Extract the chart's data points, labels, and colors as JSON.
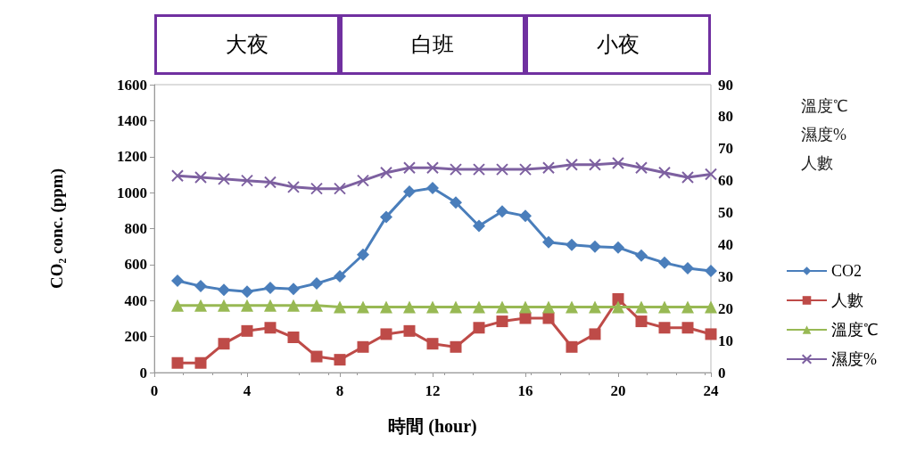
{
  "chart_data": {
    "type": "line",
    "xlabel": "時間 (hour)",
    "ylabel": "CO₂ conc. (ppm)",
    "y2label": "溫度℃\n濕度%\n人數",
    "x": [
      1,
      2,
      3,
      4,
      5,
      6,
      7,
      8,
      9,
      10,
      11,
      12,
      13,
      14,
      15,
      16,
      17,
      18,
      19,
      20,
      21,
      22,
      23,
      24
    ],
    "xlim": [
      0,
      24
    ],
    "xticks": [
      0,
      4,
      8,
      12,
      16,
      20,
      24
    ],
    "ylim": [
      0,
      1600
    ],
    "yticks": [
      0,
      200,
      400,
      600,
      800,
      1000,
      1200,
      1400,
      1600
    ],
    "y2lim": [
      0,
      90
    ],
    "y2ticks": [
      0,
      10,
      20,
      30,
      40,
      50,
      60,
      70,
      80,
      90
    ],
    "grid": false,
    "legend": "right",
    "annotations": [
      "大夜",
      "白班",
      "小夜"
    ],
    "series": [
      {
        "name": "CO2",
        "color": "#4a7ebb",
        "marker": "diamond",
        "values": [
          510,
          480,
          460,
          450,
          470,
          465,
          495,
          535,
          655,
          865,
          1005,
          1025,
          945,
          815,
          895,
          870,
          725,
          710,
          700,
          695,
          650,
          610,
          580,
          565
        ]
      },
      {
        "name": "人數",
        "color": "#be4b48",
        "marker": "square",
        "axis": "y2",
        "values": [
          3,
          3,
          9,
          13,
          14,
          11,
          5,
          4,
          8,
          12,
          13,
          9,
          8,
          14,
          16,
          17,
          17,
          8,
          12,
          23,
          16,
          14,
          14,
          12
        ]
      },
      {
        "name": "溫度℃",
        "color": "#98b954",
        "marker": "triangle",
        "axis": "y2",
        "values": [
          21,
          21,
          21,
          21,
          21,
          21,
          21,
          20.5,
          20.5,
          20.5,
          20.5,
          20.5,
          20.5,
          20.5,
          20.5,
          20.5,
          20.5,
          20.5,
          20.5,
          20.5,
          20.5,
          20.5,
          20.5,
          20.5
        ]
      },
      {
        "name": "濕度%",
        "color": "#7d60a0",
        "marker": "cross",
        "axis": "y2",
        "values": [
          61.5,
          61,
          60.5,
          60,
          59.5,
          58,
          57.5,
          57.5,
          60,
          62.5,
          64,
          64,
          63.5,
          63.5,
          63.5,
          63.5,
          64,
          65,
          65,
          65.5,
          64,
          62.5,
          61,
          62
        ]
      }
    ]
  }
}
